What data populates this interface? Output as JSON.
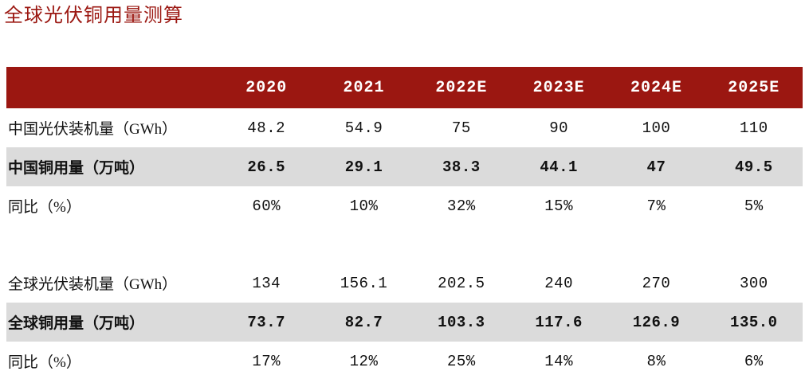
{
  "page": {
    "title": "全球光伏铜用量测算"
  },
  "colors": {
    "accent_red": "#9b1711",
    "header_text": "#ffffff",
    "highlight_row_bg": "#dbdbdb",
    "body_text": "#111111"
  },
  "chart_data": {
    "type": "table",
    "title": "全球光伏铜用量测算",
    "columns": [
      "2020",
      "2021",
      "2022E",
      "2023E",
      "2024E",
      "2025E"
    ],
    "rows": [
      {
        "label": "中国光伏装机量（GWh）",
        "style": "normal",
        "values": [
          "48.2",
          "54.9",
          "75",
          "90",
          "100",
          "110"
        ]
      },
      {
        "label": "中国铜用量（万吨）",
        "style": "highlight",
        "values": [
          "26.5",
          "29.1",
          "38.3",
          "44.1",
          "47",
          "49.5"
        ]
      },
      {
        "label": "同比（%）",
        "style": "normal",
        "values": [
          "60%",
          "10%",
          "32%",
          "15%",
          "7%",
          "5%"
        ]
      },
      {
        "label": "",
        "style": "spacer",
        "values": [
          "",
          "",
          "",
          "",
          "",
          ""
        ]
      },
      {
        "label": "全球光伏装机量（GWh）",
        "style": "normal",
        "values": [
          "134",
          "156.1",
          "202.5",
          "240",
          "270",
          "300"
        ]
      },
      {
        "label": "全球铜用量（万吨）",
        "style": "highlight",
        "values": [
          "73.7",
          "82.7",
          "103.3",
          "117.6",
          "126.9",
          "135.0"
        ]
      },
      {
        "label": "同比（%）",
        "style": "normal",
        "values": [
          "17%",
          "12%",
          "25%",
          "14%",
          "8%",
          "6%"
        ]
      }
    ]
  }
}
